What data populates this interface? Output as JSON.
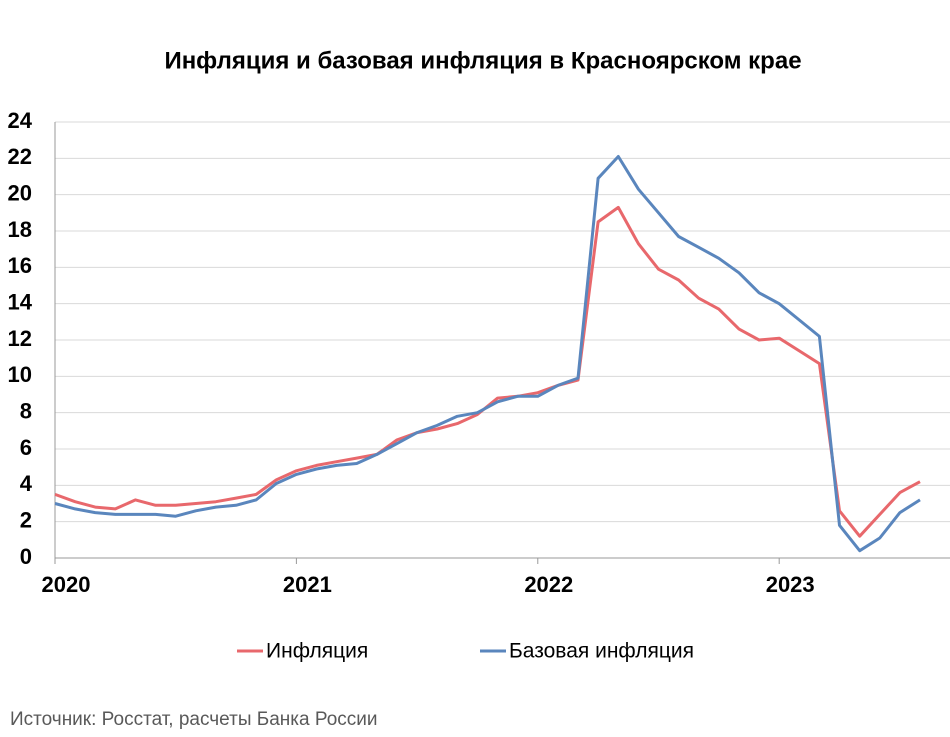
{
  "chart_data": {
    "type": "line",
    "title": "Инфляция и базовая инфляция в Красноярском крае",
    "source": "Источник: Росстат, расчеты Банка России",
    "categories": [
      "2020",
      null,
      null,
      null,
      null,
      null,
      null,
      null,
      null,
      null,
      null,
      null,
      "2021",
      null,
      null,
      null,
      null,
      null,
      null,
      null,
      null,
      null,
      null,
      null,
      "2022",
      null,
      null,
      null,
      null,
      null,
      null,
      null,
      null,
      null,
      null,
      null,
      "2023",
      null,
      null,
      null,
      null,
      null,
      null,
      null
    ],
    "series": [
      {
        "name": "Инфляция",
        "color": "#e8686c",
        "values": [
          3.5,
          3.1,
          2.8,
          2.7,
          3.2,
          2.9,
          2.9,
          3.0,
          3.1,
          3.3,
          3.5,
          4.3,
          4.8,
          5.1,
          5.3,
          5.5,
          5.7,
          6.5,
          6.9,
          7.1,
          7.4,
          7.9,
          8.8,
          8.9,
          9.1,
          9.5,
          9.8,
          18.5,
          19.3,
          17.3,
          15.9,
          15.3,
          14.3,
          13.7,
          12.6,
          12.0,
          12.1,
          11.4,
          10.7,
          2.6,
          1.2,
          2.4,
          3.6,
          4.2
        ]
      },
      {
        "name": "Базовая инфляция",
        "color": "#5a86bd",
        "values": [
          3.0,
          2.7,
          2.5,
          2.4,
          2.4,
          2.4,
          2.3,
          2.6,
          2.8,
          2.9,
          3.2,
          4.1,
          4.6,
          4.9,
          5.1,
          5.2,
          5.7,
          6.3,
          6.9,
          7.3,
          7.8,
          8.0,
          8.6,
          8.9,
          8.9,
          9.5,
          9.9,
          20.9,
          22.1,
          20.3,
          19.0,
          17.7,
          17.1,
          16.5,
          15.7,
          14.6,
          14.0,
          13.1,
          12.2,
          1.8,
          0.4,
          1.1,
          2.5,
          3.2
        ]
      }
    ],
    "ylim": [
      0,
      24
    ],
    "yticks": [
      0,
      2,
      4,
      6,
      8,
      10,
      12,
      14,
      16,
      18,
      20,
      22,
      24
    ],
    "grid": true,
    "legend": "bottom"
  }
}
